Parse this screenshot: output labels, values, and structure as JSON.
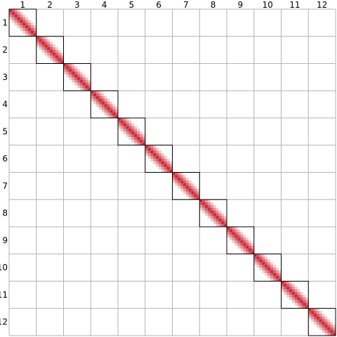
{
  "chart_data": {
    "type": "heatmap",
    "title": "",
    "xlabel": "",
    "ylabel": "",
    "x_categories": [
      "1",
      "2",
      "3",
      "4",
      "5",
      "6",
      "7",
      "8",
      "9",
      "10",
      "11",
      "12"
    ],
    "y_categories": [
      "1",
      "2",
      "3",
      "4",
      "5",
      "6",
      "7",
      "8",
      "9",
      "10",
      "11",
      "12"
    ],
    "block_size": 10,
    "decay": 0.25,
    "blocks": [
      {
        "row": "1",
        "col": "1"
      },
      {
        "row": "2",
        "col": "2"
      },
      {
        "row": "3",
        "col": "3"
      },
      {
        "row": "4",
        "col": "4"
      },
      {
        "row": "5",
        "col": "5"
      },
      {
        "row": "6",
        "col": "6"
      },
      {
        "row": "7",
        "col": "7"
      },
      {
        "row": "8",
        "col": "8"
      },
      {
        "row": "9",
        "col": "9"
      },
      {
        "row": "10",
        "col": "10"
      },
      {
        "row": "11",
        "col": "11"
      },
      {
        "row": "12",
        "col": "12"
      }
    ],
    "grid": true,
    "colors": {
      "high": "#cc2a36",
      "low": "#ffffff",
      "grid": "#b4b4b4",
      "block_border": "#000000"
    }
  }
}
